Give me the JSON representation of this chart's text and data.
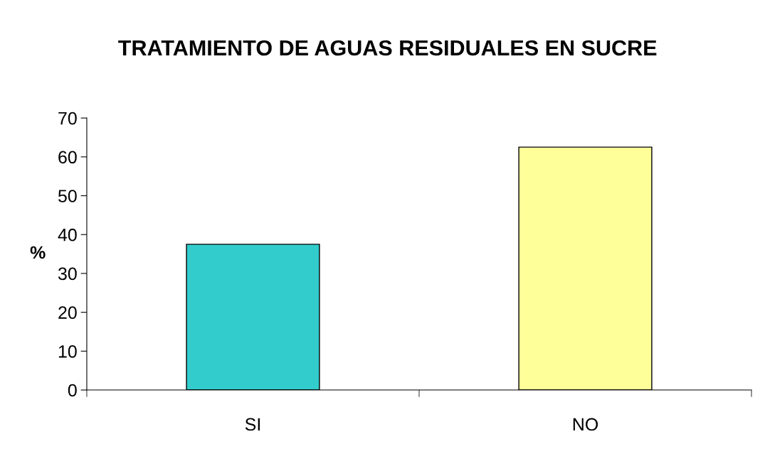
{
  "chart_data": {
    "type": "bar",
    "title": "TRATAMIENTO DE AGUAS RESIDUALES EN SUCRE",
    "ylabel": "%",
    "categories": [
      "SI",
      "NO"
    ],
    "values": [
      37.5,
      62.5
    ],
    "colors": [
      "#33cccc",
      "#ffff99"
    ],
    "ylim": [
      0,
      70
    ],
    "yticks": [
      0,
      10,
      20,
      30,
      40,
      50,
      60,
      70
    ],
    "grid": false,
    "legend": false
  }
}
